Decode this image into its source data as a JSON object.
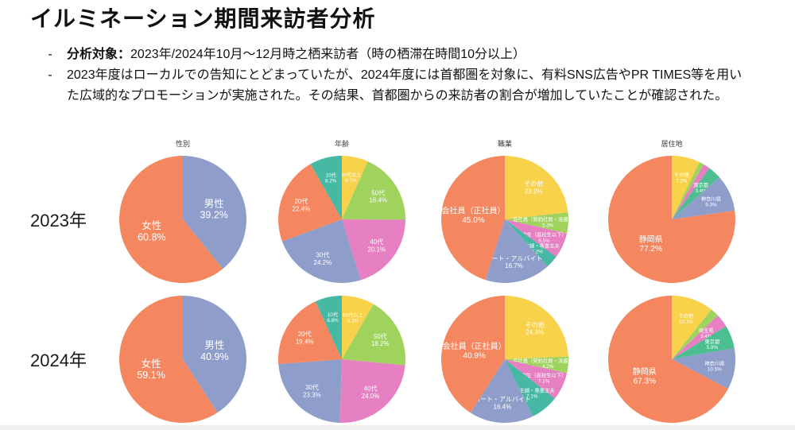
{
  "page": {
    "title": "イルミネーション期間来訪者分析",
    "bullets": [
      {
        "marker": "-",
        "lead_bold": "分析対象：",
        "text": "2023年/2024年10月～12月時之栖来訪者（時の栖滞在時間10分以上）"
      },
      {
        "marker": "-",
        "lead_bold": "",
        "text": "2023年度はローカルでの告知にとどまっていたが、2024年度には首都圏を対象に、有料SNS広告やPR TIMES等を用いた広域的なプロモーションが実施された。その結果、首都圏からの来訪者の割合が増加していたことが確認された。"
      }
    ],
    "column_headers": [
      "性別",
      "年齢",
      "職業",
      "居住地"
    ],
    "row_labels": [
      "2023年",
      "2024年"
    ]
  },
  "palette": {
    "orange": "#F4875F",
    "blue": "#8F9DCB",
    "green": "#9FD35E",
    "pink": "#E780C3",
    "teal": "#47B8A3",
    "yellow": "#F8D24A",
    "seagreen": "#4DBE8F"
  },
  "chart_data": [
    {
      "type": "pie",
      "year": "2023年",
      "dimension": "性別",
      "big_labels": true,
      "slices": [
        {
          "label": "男性",
          "value": 39.2,
          "color": "blue"
        },
        {
          "label": "女性",
          "value": 60.8,
          "color": "orange"
        }
      ]
    },
    {
      "type": "pie",
      "year": "2023年",
      "dimension": "年齢",
      "big_labels": false,
      "slices": [
        {
          "label": "60代以上",
          "value": 6.7,
          "color": "yellow"
        },
        {
          "label": "50代",
          "value": 18.4,
          "color": "green"
        },
        {
          "label": "40代",
          "value": 20.1,
          "color": "pink"
        },
        {
          "label": "30代",
          "value": 24.2,
          "color": "blue"
        },
        {
          "label": "20代",
          "value": 22.4,
          "color": "orange"
        },
        {
          "label": "10代",
          "value": 8.2,
          "color": "teal"
        }
      ]
    },
    {
      "type": "pie",
      "year": "2023年",
      "dimension": "職業",
      "big_labels": false,
      "slices": [
        {
          "label": "その他",
          "value": 23.2,
          "color": "yellow"
        },
        {
          "label": "会社員（契約社員・派遣社員）",
          "value": 5.3,
          "color": "green"
        },
        {
          "label": "学生（高校生以下）",
          "value": 6.5,
          "color": "pink"
        },
        {
          "label": "専業主婦・専業主夫",
          "value": 3.2,
          "color": "teal"
        },
        {
          "label": "パート・アルバイト",
          "value": 16.7,
          "color": "blue"
        },
        {
          "label": "会社員（正社員）",
          "value": 45.0,
          "color": "orange"
        }
      ]
    },
    {
      "type": "pie",
      "year": "2023年",
      "dimension": "居住地",
      "big_labels": false,
      "slices": [
        {
          "label": "その他",
          "value": 7.2,
          "color": "yellow"
        },
        {
          "label": "千葉県",
          "value": 1.2,
          "color": "green"
        },
        {
          "label": "埼玉県",
          "value": 1.7,
          "color": "pink"
        },
        {
          "label": "東京都",
          "value": 3.4,
          "color": "seagreen"
        },
        {
          "label": "神奈川県",
          "value": 9.3,
          "color": "blue"
        },
        {
          "label": "静岡県",
          "value": 77.2,
          "color": "orange"
        }
      ]
    },
    {
      "type": "pie",
      "year": "2024年",
      "dimension": "性別",
      "big_labels": true,
      "slices": [
        {
          "label": "男性",
          "value": 40.9,
          "color": "blue"
        },
        {
          "label": "女性",
          "value": 59.1,
          "color": "orange"
        }
      ]
    },
    {
      "type": "pie",
      "year": "2024年",
      "dimension": "年齢",
      "big_labels": false,
      "slices": [
        {
          "label": "60代以上",
          "value": 8.3,
          "color": "yellow"
        },
        {
          "label": "50代",
          "value": 18.2,
          "color": "green"
        },
        {
          "label": "40代",
          "value": 24.0,
          "color": "pink"
        },
        {
          "label": "30代",
          "value": 23.3,
          "color": "blue"
        },
        {
          "label": "20代",
          "value": 19.4,
          "color": "orange"
        },
        {
          "label": "10代",
          "value": 6.8,
          "color": "teal"
        }
      ]
    },
    {
      "type": "pie",
      "year": "2024年",
      "dimension": "職業",
      "big_labels": false,
      "slices": [
        {
          "label": "その他",
          "value": 24.3,
          "color": "yellow"
        },
        {
          "label": "会社員（契約社員・派遣社員）",
          "value": 4.2,
          "color": "green"
        },
        {
          "label": "学生（高校生以下）",
          "value": 7.1,
          "color": "pink"
        },
        {
          "label": "専業主婦・専業主夫",
          "value": 7.1,
          "color": "teal"
        },
        {
          "label": "パート・アルバイト",
          "value": 16.4,
          "color": "blue"
        },
        {
          "label": "会社員（正社員）",
          "value": 40.9,
          "color": "orange"
        }
      ]
    },
    {
      "type": "pie",
      "year": "2024年",
      "dimension": "居住地",
      "big_labels": false,
      "slices": [
        {
          "label": "その他",
          "value": 10.7,
          "color": "yellow"
        },
        {
          "label": "千葉県",
          "value": 2.2,
          "color": "green"
        },
        {
          "label": "埼玉県",
          "value": 3.4,
          "color": "pink"
        },
        {
          "label": "東京都",
          "value": 5.9,
          "color": "seagreen"
        },
        {
          "label": "神奈川県",
          "value": 10.5,
          "color": "blue"
        },
        {
          "label": "静岡県",
          "value": 67.3,
          "color": "orange"
        }
      ]
    }
  ]
}
